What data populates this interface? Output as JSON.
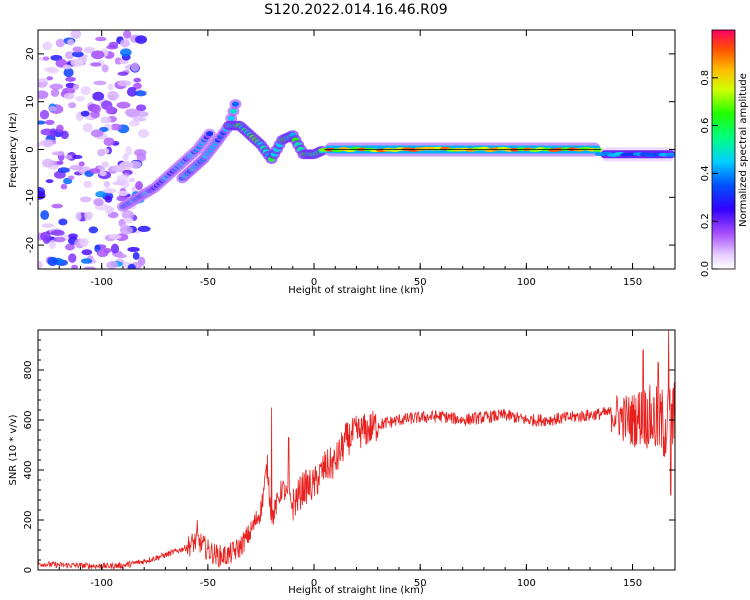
{
  "title": "S120.2022.014.16.46.R09",
  "colors": {
    "snr_line": "#e8211f",
    "spectrogram_palette": [
      "#ffffff",
      "#e6ccff",
      "#a64dff",
      "#5a00ff",
      "#0000ff",
      "#00bfff",
      "#00ffaa",
      "#00ff00",
      "#ccff00",
      "#ffcc00",
      "#ff6600",
      "#ff0066"
    ]
  },
  "chart_data": [
    {
      "type": "heatmap",
      "name": "spectrogram",
      "xlabel": "Height of straight line (km)",
      "ylabel": "Frequency (Hz)",
      "xlim": [
        -130,
        170
      ],
      "ylim": [
        -25,
        25
      ],
      "xticks": [
        -100,
        -50,
        0,
        50,
        100,
        150
      ],
      "yticks": [
        -20,
        -10,
        0,
        10,
        20
      ],
      "grid": false,
      "colorbar": {
        "label": "Normalized spectral amplitude",
        "range": [
          0,
          1
        ],
        "ticks": [
          "0.0",
          "0.2",
          "0.4",
          "0.6",
          "0.8"
        ]
      },
      "features": [
        {
          "label": "diffuse noise",
          "x_range": [
            -130,
            -80
          ],
          "y_range": [
            -25,
            25
          ],
          "amplitude": 0.2
        },
        {
          "label": "rising streak A",
          "points": [
            [
              -90,
              -12
            ],
            [
              -75,
              -8
            ],
            [
              -65,
              -4
            ],
            [
              -55,
              0
            ],
            [
              -48,
              4
            ]
          ],
          "amplitude": 0.35
        },
        {
          "label": "rising streak B",
          "points": [
            [
              -62,
              -6
            ],
            [
              -52,
              -2
            ],
            [
              -45,
              2
            ],
            [
              -40,
              5
            ],
            [
              -36,
              11
            ]
          ],
          "amplitude": 0.4
        },
        {
          "label": "oscillation",
          "points": [
            [
              -40,
              5
            ],
            [
              -35,
              5
            ],
            [
              -30,
              3
            ],
            [
              -25,
              1
            ],
            [
              -20,
              -2
            ],
            [
              -15,
              2
            ],
            [
              -10,
              3
            ],
            [
              -5,
              -1
            ],
            [
              0,
              -1
            ],
            [
              5,
              0
            ]
          ],
          "amplitude": 0.55
        },
        {
          "label": "steady tone",
          "x_range": [
            5,
            135
          ],
          "y": 0,
          "amplitude": 0.95
        },
        {
          "label": "tail",
          "x_range": [
            135,
            170
          ],
          "y": -1,
          "amplitude": 0.45
        }
      ]
    },
    {
      "type": "line",
      "name": "snr",
      "xlabel": "Height of straight line (km)",
      "ylabel": "SNR (10 * v/v)",
      "xlim": [
        -130,
        170
      ],
      "ylim": [
        0,
        960
      ],
      "xticks": [
        -100,
        -50,
        0,
        50,
        100,
        150
      ],
      "yticks": [
        0,
        200,
        400,
        600,
        800
      ],
      "grid": false,
      "series": [
        {
          "x": [
            -130,
            -120,
            -110,
            -100,
            -90,
            -80,
            -70,
            -60,
            -55,
            -50,
            -45,
            -40,
            -35,
            -30,
            -25,
            -22,
            -20,
            -15,
            -10,
            -5,
            0,
            5,
            10,
            15,
            20,
            25,
            30,
            40,
            50,
            60,
            70,
            80,
            90,
            100,
            110,
            120,
            130,
            140,
            145,
            150,
            155,
            160,
            165,
            170
          ],
          "values": [
            25,
            20,
            18,
            15,
            18,
            35,
            60,
            90,
            120,
            80,
            55,
            60,
            90,
            150,
            240,
            420,
            200,
            330,
            260,
            330,
            340,
            410,
            430,
            520,
            550,
            560,
            580,
            600,
            610,
            615,
            600,
            610,
            620,
            600,
            600,
            610,
            620,
            630,
            610,
            600,
            620,
            600,
            580,
            600
          ],
          "spikes": [
            {
              "x": -55,
              "value": 200
            },
            {
              "x": -20,
              "value": 650
            },
            {
              "x": -12,
              "value": 530
            },
            {
              "x": 155,
              "value": 880
            },
            {
              "x": 162,
              "value": 830
            },
            {
              "x": 167,
              "value": 960
            },
            {
              "x": 168,
              "value": 300
            }
          ]
        }
      ]
    }
  ]
}
